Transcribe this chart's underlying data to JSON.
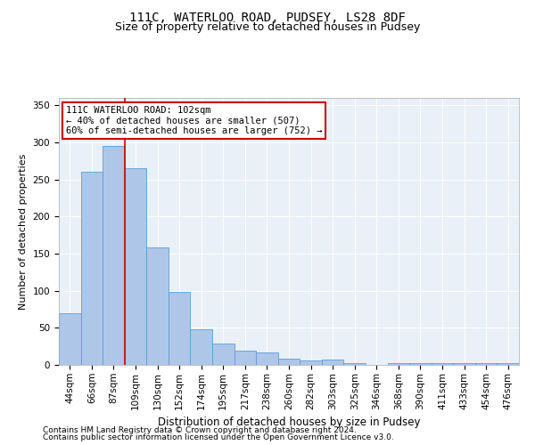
{
  "title1": "111C, WATERLOO ROAD, PUDSEY, LS28 8DF",
  "title2": "Size of property relative to detached houses in Pudsey",
  "xlabel": "Distribution of detached houses by size in Pudsey",
  "ylabel": "Number of detached properties",
  "categories": [
    "44sqm",
    "66sqm",
    "87sqm",
    "109sqm",
    "130sqm",
    "152sqm",
    "174sqm",
    "195sqm",
    "217sqm",
    "238sqm",
    "260sqm",
    "282sqm",
    "303sqm",
    "325sqm",
    "346sqm",
    "368sqm",
    "390sqm",
    "411sqm",
    "433sqm",
    "454sqm",
    "476sqm"
  ],
  "values": [
    70,
    260,
    295,
    265,
    158,
    98,
    48,
    29,
    19,
    17,
    9,
    6,
    7,
    3,
    0,
    3,
    3,
    2,
    3,
    3,
    3
  ],
  "bar_color": "#aec6e8",
  "bar_edge_color": "#5a9fd4",
  "vline_x": 2.5,
  "vline_color": "#cc0000",
  "annotation_line1": "111C WATERLOO ROAD: 102sqm",
  "annotation_line2": "← 40% of detached houses are smaller (507)",
  "annotation_line3": "60% of semi-detached houses are larger (752) →",
  "annotation_box_color": "#ffffff",
  "annotation_box_edge": "#cc0000",
  "footer1": "Contains HM Land Registry data © Crown copyright and database right 2024.",
  "footer2": "Contains public sector information licensed under the Open Government Licence v3.0.",
  "ylim": [
    0,
    360
  ],
  "yticks": [
    0,
    50,
    100,
    150,
    200,
    250,
    300,
    350
  ],
  "title1_fontsize": 10,
  "title2_fontsize": 9,
  "xlabel_fontsize": 8.5,
  "ylabel_fontsize": 8,
  "tick_fontsize": 7.5,
  "annot_fontsize": 7.5,
  "footer_fontsize": 6.5,
  "background_color": "#eaf0f8"
}
